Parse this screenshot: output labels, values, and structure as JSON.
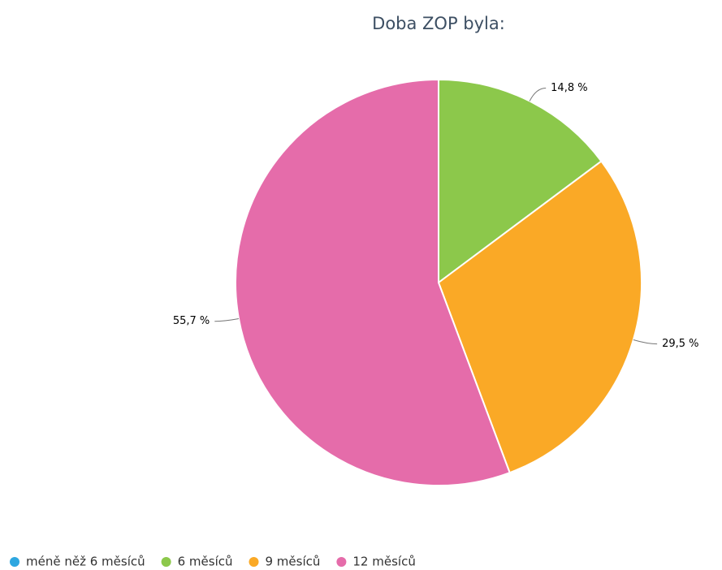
{
  "chart_data": {
    "type": "pie",
    "title": "Doba ZOP byla:",
    "categories": [
      "méně něž 6 měsíců",
      "6 měsíců",
      "9 měsíců",
      "12 měsíců"
    ],
    "values": [
      0,
      14.8,
      29.5,
      55.7
    ],
    "value_labels": [
      null,
      "14,8 %",
      "29,5 %",
      "55,7 %"
    ],
    "colors": [
      "#2ea7e0",
      "#8cc84b",
      "#faa926",
      "#e56caa"
    ],
    "legend": "bottom"
  }
}
